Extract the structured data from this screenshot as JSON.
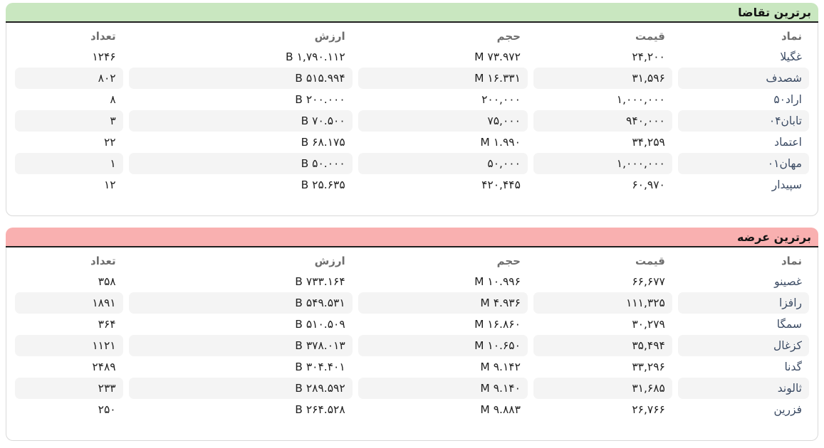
{
  "colors": {
    "demand_header_bg": "#c9e7c0",
    "supply_header_bg": "#f9b0b0",
    "header_border": "#1f1f1f",
    "panel_border": "#d9d9d9",
    "stripe": "#f4f4f4",
    "symbol_text": "#3a4a63",
    "number_text": "#212121",
    "column_header_text": "#6e6e6e"
  },
  "columns": {
    "symbol": "نماد",
    "price": "قیمت",
    "volume": "حجم",
    "value": "ارزش",
    "count": "تعداد"
  },
  "demand_table": {
    "title": "برترین تقاضا",
    "rows": [
      {
        "symbol": "غگیلا",
        "price": "۲۴,۲۰۰",
        "volume": "۷۳.۹۷۲ M",
        "value": "۱,۷۹۰.۱۱۲ B",
        "count": "۱۲۴۶"
      },
      {
        "symbol": "شصدف",
        "price": "۳۱,۵۹۶",
        "volume": "۱۶.۳۳۱ M",
        "value": "۵۱۵.۹۹۴ B",
        "count": "۸۰۲"
      },
      {
        "symbol": "اراد۵۰",
        "price": "۱,۰۰۰,۰۰۰",
        "volume": "۲۰۰,۰۰۰",
        "value": "۲۰۰.۰۰۰ B",
        "count": "۸"
      },
      {
        "symbol": "تابان۰۴",
        "price": "۹۴۰,۰۰۰",
        "volume": "۷۵,۰۰۰",
        "value": "۷۰.۵۰۰ B",
        "count": "۳"
      },
      {
        "symbol": "اعتماد",
        "price": "۳۴,۲۵۹",
        "volume": "۱.۹۹۰ M",
        "value": "۶۸.۱۷۵ B",
        "count": "۲۲"
      },
      {
        "symbol": "مهان۰۱",
        "price": "۱,۰۰۰,۰۰۰",
        "volume": "۵۰,۰۰۰",
        "value": "۵۰.۰۰۰ B",
        "count": "۱"
      },
      {
        "symbol": "سپیدار",
        "price": "۶۰,۹۷۰",
        "volume": "۴۲۰,۴۴۵",
        "value": "۲۵.۶۳۵ B",
        "count": "۱۲"
      }
    ]
  },
  "supply_table": {
    "title": "برترین عرضه",
    "rows": [
      {
        "symbol": "غصینو",
        "price": "۶۶,۶۷۷",
        "volume": "۱۰.۹۹۶ M",
        "value": "۷۳۳.۱۶۴ B",
        "count": "۳۵۸"
      },
      {
        "symbol": "رافزا",
        "price": "۱۱۱,۳۲۵",
        "volume": "۴.۹۳۶ M",
        "value": "۵۴۹.۵۳۱ B",
        "count": "۱۸۹۱"
      },
      {
        "symbol": "سمگا",
        "price": "۳۰,۲۷۹",
        "volume": "۱۶.۸۶۰ M",
        "value": "۵۱۰.۵۰۹ B",
        "count": "۳۶۴"
      },
      {
        "symbol": "کزغال",
        "price": "۳۵,۴۹۴",
        "volume": "۱۰.۶۵۰ M",
        "value": "۳۷۸.۰۱۳ B",
        "count": "۱۱۲۱"
      },
      {
        "symbol": "گدنا",
        "price": "۳۳,۲۹۶",
        "volume": "۹.۱۴۲ M",
        "value": "۳۰۴.۴۰۱ B",
        "count": "۲۴۸۹"
      },
      {
        "symbol": "ثالوند",
        "price": "۳۱,۶۸۵",
        "volume": "۹.۱۴۰ M",
        "value": "۲۸۹.۵۹۲ B",
        "count": "۲۳۳"
      },
      {
        "symbol": "فزرین",
        "price": "۲۶,۷۶۶",
        "volume": "۹.۸۸۳ M",
        "value": "۲۶۴.۵۲۸ B",
        "count": "۲۵۰"
      }
    ]
  }
}
